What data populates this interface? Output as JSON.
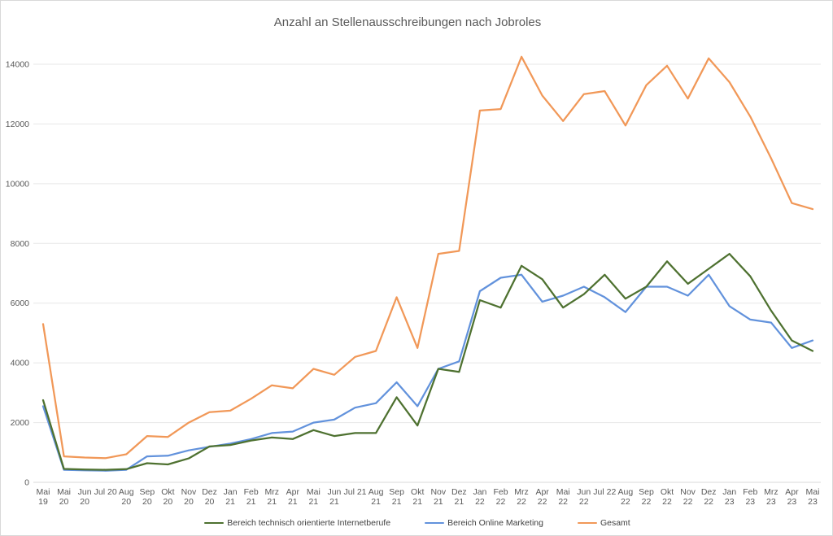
{
  "chart": {
    "title": "Anzahl an Stellenausschreibungen nach Jobroles"
  },
  "chart_data": {
    "type": "line",
    "title": "Anzahl an Stellenausschreibungen nach Jobroles",
    "xlabel": "",
    "ylabel": "",
    "ylim": [
      0,
      14000
    ],
    "yticks": [
      0,
      2000,
      4000,
      6000,
      8000,
      10000,
      12000,
      14000
    ],
    "grid": true,
    "legend_position": "bottom",
    "categories": [
      "Mai 19",
      "Mai 20",
      "Jun 20",
      "Jul 20",
      "Aug 20",
      "Sep 20",
      "Okt 20",
      "Nov 20",
      "Dez 20",
      "Jan 21",
      "Feb 21",
      "Mrz 21",
      "Apr 21",
      "Mai 21",
      "Jun 21",
      "Jul 21",
      "Aug 21",
      "Sep 21",
      "Okt 21",
      "Nov 21",
      "Dez 21",
      "Jan 22",
      "Feb 22",
      "Mrz 22",
      "Apr 22",
      "Mai 22",
      "Jun 22",
      "Jul 22",
      "Aug 22",
      "Sep 22",
      "Okt 22",
      "Nov 22",
      "Dez 22",
      "Jan 23",
      "Feb 23",
      "Mrz 23",
      "Apr 23",
      "Mai 23"
    ],
    "single_line_labels": [
      "Jul 20",
      "Jul 21",
      "Jul 22"
    ],
    "series": [
      {
        "name": "Bereich technisch orientierte Internetberufe",
        "color": "#4E7130",
        "values": [
          2750,
          450,
          430,
          420,
          440,
          640,
          600,
          800,
          1200,
          1250,
          1400,
          1500,
          1450,
          1750,
          1550,
          1650,
          1650,
          2850,
          1900,
          3800,
          3700,
          6100,
          5850,
          7250,
          6800,
          5850,
          6300,
          6950,
          6150,
          6550,
          7400,
          6650,
          7150,
          7650,
          6900,
          5750,
          4750,
          4400
        ]
      },
      {
        "name": "Bereich Online Marketing",
        "color": "#6292DC",
        "values": [
          2550,
          420,
          400,
          390,
          420,
          870,
          890,
          1070,
          1190,
          1300,
          1450,
          1650,
          1700,
          2000,
          2100,
          2500,
          2650,
          3350,
          2550,
          3800,
          4050,
          6400,
          6850,
          6950,
          6050,
          6250,
          6550,
          6200,
          5700,
          6550,
          6550,
          6250,
          6950,
          5900,
          5450,
          5350,
          4500,
          4750
        ]
      },
      {
        "name": "Gesamt",
        "color": "#F19858",
        "values": [
          5300,
          870,
          830,
          810,
          940,
          1550,
          1520,
          2000,
          2350,
          2400,
          2800,
          3250,
          3150,
          3800,
          3600,
          4200,
          4400,
          6200,
          4500,
          7650,
          7750,
          12450,
          12500,
          14250,
          12950,
          12100,
          13000,
          13100,
          11950,
          13300,
          13950,
          12850,
          14200,
          13400,
          12250,
          10850,
          9350,
          9150
        ]
      }
    ]
  },
  "colors": {
    "background": "#FFFFFF",
    "border": "#D9D9D9",
    "gridline": "#E7E7E7",
    "baseline": "#D9D9D9",
    "axis_text": "#595959",
    "title_text": "#595959",
    "legend_text": "#404040"
  }
}
